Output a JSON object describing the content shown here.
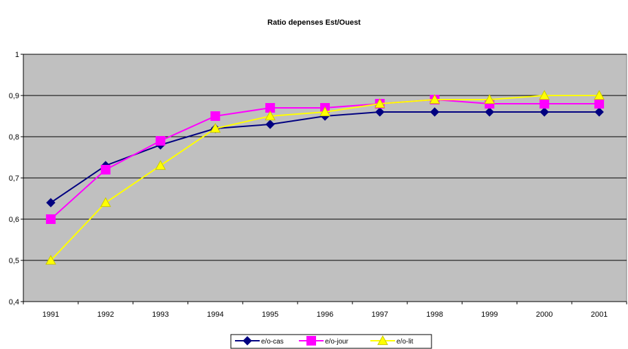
{
  "chart_data": {
    "type": "line",
    "title": "Ratio depenses Est/Ouest",
    "xlabel": "",
    "ylabel": "",
    "categories": [
      "1991",
      "1992",
      "1993",
      "1994",
      "1995",
      "1996",
      "1997",
      "1998",
      "1999",
      "2000",
      "2001"
    ],
    "ylim": [
      0.4,
      1
    ],
    "yticks": [
      "0,4",
      "0,5",
      "0,6",
      "0,7",
      "0,8",
      "0,9",
      "1"
    ],
    "grid": true,
    "plot_background": "#c0c0c0",
    "legend_position": "bottom",
    "series": [
      {
        "name": "e/o-cas",
        "color": "#000080",
        "marker": "diamond",
        "values": [
          0.64,
          0.73,
          0.78,
          0.82,
          0.83,
          0.85,
          0.86,
          0.86,
          0.86,
          0.86,
          0.86
        ]
      },
      {
        "name": "e/o-jour",
        "color": "#ff00ff",
        "marker": "square",
        "values": [
          0.6,
          0.72,
          0.79,
          0.85,
          0.87,
          0.87,
          0.88,
          0.89,
          0.88,
          0.88,
          0.88
        ]
      },
      {
        "name": "e/o-lit",
        "color": "#ffff00",
        "marker": "triangle",
        "values": [
          0.5,
          0.64,
          0.73,
          0.82,
          0.85,
          0.86,
          0.88,
          0.89,
          0.89,
          0.9,
          0.9
        ]
      }
    ]
  }
}
